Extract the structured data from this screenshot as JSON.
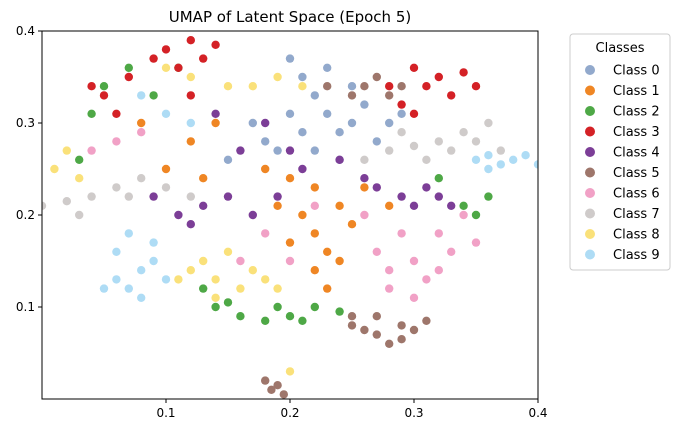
{
  "chart_data": {
    "type": "scatter",
    "title": "UMAP of Latent Space (Epoch 5)",
    "xlabel": "",
    "ylabel": "",
    "xlim": [
      0.0,
      0.4
    ],
    "ylim": [
      0.0,
      0.4
    ],
    "xticks": [
      0.1,
      0.2,
      0.3,
      0.4
    ],
    "xtick_labels": [
      "0.1",
      "0.2",
      "0.3",
      "0.4"
    ],
    "yticks": [
      0.1,
      0.2,
      0.3,
      0.4
    ],
    "ytick_labels": [
      "0.1",
      "0.2",
      "0.3",
      "0.4"
    ],
    "grid": false,
    "legend": {
      "title": "Classes",
      "placement": "outside-right-top"
    },
    "series": [
      {
        "name": "Class 0",
        "color": "#92a9cc",
        "points": [
          [
            0.2,
            0.37
          ],
          [
            0.21,
            0.35
          ],
          [
            0.22,
            0.33
          ],
          [
            0.23,
            0.31
          ],
          [
            0.24,
            0.29
          ],
          [
            0.25,
            0.3
          ],
          [
            0.26,
            0.32
          ],
          [
            0.2,
            0.31
          ],
          [
            0.18,
            0.28
          ],
          [
            0.19,
            0.27
          ],
          [
            0.22,
            0.27
          ],
          [
            0.24,
            0.26
          ],
          [
            0.27,
            0.28
          ],
          [
            0.28,
            0.3
          ],
          [
            0.23,
            0.36
          ],
          [
            0.25,
            0.34
          ],
          [
            0.29,
            0.31
          ],
          [
            0.15,
            0.26
          ],
          [
            0.17,
            0.3
          ],
          [
            0.21,
            0.29
          ]
        ]
      },
      {
        "name": "Class 1",
        "color": "#ef8624",
        "points": [
          [
            0.21,
            0.2
          ],
          [
            0.22,
            0.18
          ],
          [
            0.23,
            0.16
          ],
          [
            0.22,
            0.14
          ],
          [
            0.24,
            0.21
          ],
          [
            0.2,
            0.17
          ],
          [
            0.25,
            0.19
          ],
          [
            0.23,
            0.12
          ],
          [
            0.19,
            0.21
          ],
          [
            0.26,
            0.23
          ],
          [
            0.12,
            0.28
          ],
          [
            0.14,
            0.3
          ],
          [
            0.1,
            0.25
          ],
          [
            0.13,
            0.24
          ],
          [
            0.18,
            0.25
          ],
          [
            0.22,
            0.23
          ],
          [
            0.28,
            0.21
          ],
          [
            0.24,
            0.15
          ],
          [
            0.2,
            0.24
          ],
          [
            0.08,
            0.3
          ]
        ]
      },
      {
        "name": "Class 2",
        "color": "#4ea846",
        "points": [
          [
            0.14,
            0.1
          ],
          [
            0.16,
            0.09
          ],
          [
            0.18,
            0.085
          ],
          [
            0.2,
            0.09
          ],
          [
            0.22,
            0.1
          ],
          [
            0.24,
            0.095
          ],
          [
            0.13,
            0.12
          ],
          [
            0.15,
            0.105
          ],
          [
            0.19,
            0.1
          ],
          [
            0.21,
            0.085
          ],
          [
            0.04,
            0.31
          ],
          [
            0.05,
            0.34
          ],
          [
            0.07,
            0.36
          ],
          [
            0.09,
            0.33
          ],
          [
            0.11,
            0.36
          ],
          [
            0.34,
            0.21
          ],
          [
            0.35,
            0.2
          ],
          [
            0.36,
            0.22
          ],
          [
            0.32,
            0.24
          ],
          [
            0.03,
            0.26
          ]
        ]
      },
      {
        "name": "Class 3",
        "color": "#d42126",
        "points": [
          [
            0.1,
            0.38
          ],
          [
            0.12,
            0.39
          ],
          [
            0.14,
            0.385
          ],
          [
            0.11,
            0.36
          ],
          [
            0.13,
            0.37
          ],
          [
            0.04,
            0.34
          ],
          [
            0.05,
            0.33
          ],
          [
            0.07,
            0.35
          ],
          [
            0.3,
            0.36
          ],
          [
            0.31,
            0.34
          ],
          [
            0.32,
            0.35
          ],
          [
            0.34,
            0.355
          ],
          [
            0.33,
            0.33
          ],
          [
            0.29,
            0.32
          ],
          [
            0.3,
            0.31
          ],
          [
            0.35,
            0.34
          ],
          [
            0.09,
            0.37
          ],
          [
            0.12,
            0.33
          ],
          [
            0.06,
            0.31
          ],
          [
            0.28,
            0.34
          ]
        ]
      },
      {
        "name": "Class 4",
        "color": "#7c3e97",
        "points": [
          [
            0.11,
            0.2
          ],
          [
            0.13,
            0.21
          ],
          [
            0.15,
            0.22
          ],
          [
            0.17,
            0.2
          ],
          [
            0.12,
            0.19
          ],
          [
            0.29,
            0.22
          ],
          [
            0.31,
            0.23
          ],
          [
            0.3,
            0.21
          ],
          [
            0.32,
            0.22
          ],
          [
            0.27,
            0.23
          ],
          [
            0.24,
            0.26
          ],
          [
            0.2,
            0.27
          ],
          [
            0.16,
            0.27
          ],
          [
            0.14,
            0.31
          ],
          [
            0.18,
            0.3
          ],
          [
            0.26,
            0.24
          ],
          [
            0.21,
            0.25
          ],
          [
            0.09,
            0.22
          ],
          [
            0.33,
            0.21
          ],
          [
            0.19,
            0.22
          ]
        ]
      },
      {
        "name": "Class 5",
        "color": "#9e766b",
        "points": [
          [
            0.25,
            0.09
          ],
          [
            0.26,
            0.075
          ],
          [
            0.27,
            0.07
          ],
          [
            0.28,
            0.06
          ],
          [
            0.29,
            0.08
          ],
          [
            0.3,
            0.075
          ],
          [
            0.31,
            0.085
          ],
          [
            0.27,
            0.09
          ],
          [
            0.29,
            0.065
          ],
          [
            0.25,
            0.08
          ],
          [
            0.28,
            0.33
          ],
          [
            0.26,
            0.34
          ],
          [
            0.27,
            0.35
          ],
          [
            0.25,
            0.33
          ],
          [
            0.29,
            0.34
          ],
          [
            0.23,
            0.34
          ],
          [
            0.185,
            0.01
          ],
          [
            0.19,
            0.015
          ],
          [
            0.195,
            0.005
          ],
          [
            0.18,
            0.02
          ]
        ]
      },
      {
        "name": "Class 6",
        "color": "#f1a1c6",
        "points": [
          [
            0.27,
            0.16
          ],
          [
            0.28,
            0.14
          ],
          [
            0.3,
            0.15
          ],
          [
            0.31,
            0.13
          ],
          [
            0.32,
            0.18
          ],
          [
            0.29,
            0.18
          ],
          [
            0.33,
            0.16
          ],
          [
            0.28,
            0.12
          ],
          [
            0.3,
            0.11
          ],
          [
            0.34,
            0.2
          ],
          [
            0.35,
            0.17
          ],
          [
            0.2,
            0.15
          ],
          [
            0.18,
            0.18
          ],
          [
            0.16,
            0.15
          ],
          [
            0.22,
            0.21
          ],
          [
            0.08,
            0.29
          ],
          [
            0.06,
            0.28
          ],
          [
            0.04,
            0.27
          ],
          [
            0.26,
            0.2
          ],
          [
            0.32,
            0.14
          ]
        ]
      },
      {
        "name": "Class 7",
        "color": "#cfcbca",
        "points": [
          [
            0.0,
            0.21
          ],
          [
            0.02,
            0.215
          ],
          [
            0.04,
            0.22
          ],
          [
            0.06,
            0.23
          ],
          [
            0.08,
            0.24
          ],
          [
            0.1,
            0.23
          ],
          [
            0.28,
            0.27
          ],
          [
            0.3,
            0.275
          ],
          [
            0.32,
            0.28
          ],
          [
            0.34,
            0.29
          ],
          [
            0.36,
            0.3
          ],
          [
            0.31,
            0.26
          ],
          [
            0.33,
            0.27
          ],
          [
            0.35,
            0.28
          ],
          [
            0.26,
            0.26
          ],
          [
            0.29,
            0.29
          ],
          [
            0.12,
            0.22
          ],
          [
            0.03,
            0.2
          ],
          [
            0.37,
            0.27
          ],
          [
            0.07,
            0.22
          ]
        ]
      },
      {
        "name": "Class 8",
        "color": "#fae17a",
        "points": [
          [
            0.12,
            0.14
          ],
          [
            0.14,
            0.13
          ],
          [
            0.16,
            0.12
          ],
          [
            0.18,
            0.13
          ],
          [
            0.15,
            0.16
          ],
          [
            0.13,
            0.15
          ],
          [
            0.17,
            0.14
          ],
          [
            0.11,
            0.13
          ],
          [
            0.19,
            0.12
          ],
          [
            0.1,
            0.36
          ],
          [
            0.12,
            0.35
          ],
          [
            0.15,
            0.34
          ],
          [
            0.17,
            0.34
          ],
          [
            0.19,
            0.35
          ],
          [
            0.21,
            0.34
          ],
          [
            0.02,
            0.27
          ],
          [
            0.01,
            0.25
          ],
          [
            0.03,
            0.24
          ],
          [
            0.2,
            0.03
          ],
          [
            0.14,
            0.11
          ]
        ]
      },
      {
        "name": "Class 9",
        "color": "#aedcf5",
        "points": [
          [
            0.06,
            0.13
          ],
          [
            0.07,
            0.12
          ],
          [
            0.08,
            0.14
          ],
          [
            0.06,
            0.16
          ],
          [
            0.07,
            0.18
          ],
          [
            0.09,
            0.15
          ],
          [
            0.05,
            0.12
          ],
          [
            0.1,
            0.13
          ],
          [
            0.09,
            0.17
          ],
          [
            0.08,
            0.11
          ],
          [
            0.35,
            0.26
          ],
          [
            0.36,
            0.265
          ],
          [
            0.37,
            0.255
          ],
          [
            0.38,
            0.26
          ],
          [
            0.39,
            0.265
          ],
          [
            0.4,
            0.255
          ],
          [
            0.1,
            0.31
          ],
          [
            0.12,
            0.3
          ],
          [
            0.08,
            0.33
          ],
          [
            0.36,
            0.25
          ]
        ]
      }
    ]
  }
}
